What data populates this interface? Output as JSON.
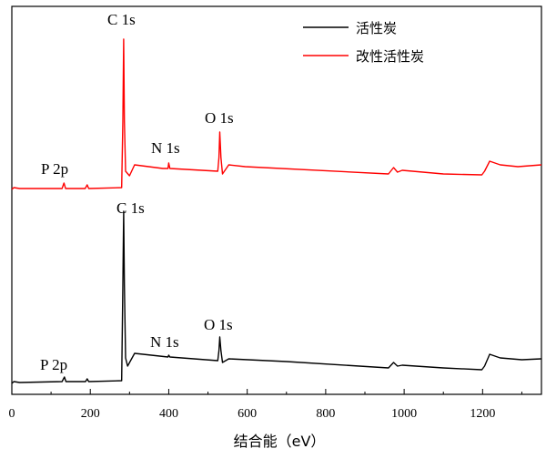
{
  "chart_data": {
    "type": "line",
    "title": "",
    "xlabel": "结合能（eV）",
    "ylabel": "",
    "xlim": [
      0,
      1350
    ],
    "ylim": [
      0,
      426
    ],
    "y_units": "arbitrary intensity (no y ticks shown)",
    "xticks": [
      0,
      200,
      400,
      600,
      800,
      1000,
      1200
    ],
    "grid": false,
    "legend_position": "top-right",
    "series": [
      {
        "name": "活性炭",
        "color": "#000000",
        "x": [
          0,
          5,
          20,
          128,
          134,
          138,
          188,
          192,
          196,
          280,
          283,
          285,
          287,
          290,
          295,
          313,
          398,
          400,
          403,
          525,
          528,
          530,
          533,
          537,
          553,
          700,
          960,
          973,
          983,
          995,
          1100,
          1198,
          1205,
          1218,
          1245,
          1300,
          1350
        ],
        "y": [
          12,
          14,
          13,
          14,
          19,
          14,
          14,
          17,
          14,
          15,
          120,
          201,
          120,
          40,
          31,
          45,
          41,
          43,
          41,
          37,
          48,
          63,
          48,
          35,
          39,
          36,
          29,
          35,
          31,
          32,
          29,
          27,
          31,
          44,
          40,
          38,
          39
        ],
        "annotations": [
          {
            "text": "P 2p",
            "x": 133
          },
          {
            "text": "C 1s",
            "x": 285
          },
          {
            "text": "N 1s",
            "x": 400
          },
          {
            "text": "O 1s",
            "x": 530
          }
        ]
      },
      {
        "name": "改性活性炭",
        "color": "#ff0000",
        "x": [
          0,
          5,
          20,
          128,
          133,
          137,
          187,
          192,
          196,
          280,
          283,
          285,
          287,
          290,
          300,
          313,
          385,
          398,
          400,
          403,
          525,
          528,
          530,
          533,
          537,
          553,
          595,
          960,
          973,
          983,
          995,
          1100,
          1198,
          1205,
          1218,
          1245,
          1290,
          1350
        ],
        "y": [
          225,
          227,
          226,
          226,
          232,
          226,
          226,
          230,
          226,
          227,
          300,
          390,
          300,
          245,
          240,
          252,
          248,
          248,
          254,
          248,
          245,
          260,
          288,
          260,
          242,
          252,
          250,
          242,
          249,
          244,
          246,
          242,
          241,
          245,
          256,
          252,
          250,
          252
        ],
        "annotations": [
          {
            "text": "P 2p",
            "x": 133
          },
          {
            "text": "C 1s",
            "x": 285
          },
          {
            "text": "N 1s",
            "x": 400
          },
          {
            "text": "O 1s",
            "x": 530
          }
        ]
      }
    ]
  }
}
